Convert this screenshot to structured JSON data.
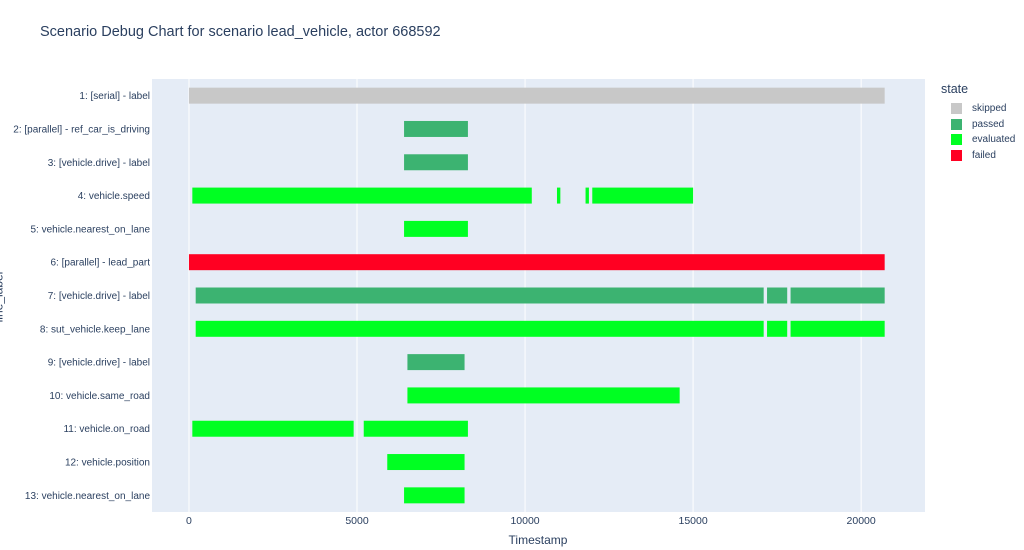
{
  "chart_data": {
    "type": "gantt",
    "title": "Scenario Debug Chart for scenario lead_vehicle, actor 668592",
    "xlabel": "Timestamp",
    "ylabel": "line_label",
    "xlim": [
      -1100,
      21900
    ],
    "xticks": [
      0,
      5000,
      10000,
      15000,
      20000
    ],
    "grid": true,
    "legend": {
      "title": "state",
      "placement": "right",
      "items": [
        {
          "label": "skipped",
          "color": "#c8c8c8"
        },
        {
          "label": "passed",
          "color": "#3cb371"
        },
        {
          "label": "evaluated",
          "color": "#00ff22"
        },
        {
          "label": "failed",
          "color": "#ff0022"
        }
      ]
    },
    "rows": [
      {
        "label": "1: [serial] - label",
        "segments": [
          {
            "start": 0,
            "end": 20700,
            "state": "skipped"
          }
        ]
      },
      {
        "label": "2: [parallel] - ref_car_is_driving",
        "segments": [
          {
            "start": 6400,
            "end": 8300,
            "state": "passed"
          }
        ]
      },
      {
        "label": "3: [vehicle.drive] - label",
        "segments": [
          {
            "start": 6400,
            "end": 8300,
            "state": "passed"
          }
        ]
      },
      {
        "label": "4: vehicle.speed",
        "segments": [
          {
            "start": 100,
            "end": 10200,
            "state": "evaluated"
          },
          {
            "start": 10950,
            "end": 11050,
            "state": "evaluated"
          },
          {
            "start": 11800,
            "end": 11900,
            "state": "evaluated"
          },
          {
            "start": 12000,
            "end": 15000,
            "state": "evaluated"
          }
        ]
      },
      {
        "label": "5: vehicle.nearest_on_lane",
        "segments": [
          {
            "start": 6400,
            "end": 8300,
            "state": "evaluated"
          }
        ]
      },
      {
        "label": "6: [parallel] - lead_part",
        "segments": [
          {
            "start": 0,
            "end": 20700,
            "state": "failed"
          }
        ]
      },
      {
        "label": "7: [vehicle.drive] - label",
        "segments": [
          {
            "start": 200,
            "end": 17100,
            "state": "passed"
          },
          {
            "start": 17200,
            "end": 17800,
            "state": "passed"
          },
          {
            "start": 17900,
            "end": 20700,
            "state": "passed"
          }
        ]
      },
      {
        "label": "8: sut_vehicle.keep_lane",
        "segments": [
          {
            "start": 200,
            "end": 17100,
            "state": "evaluated"
          },
          {
            "start": 17200,
            "end": 17800,
            "state": "evaluated"
          },
          {
            "start": 17900,
            "end": 20700,
            "state": "evaluated"
          }
        ]
      },
      {
        "label": "9: [vehicle.drive] - label",
        "segments": [
          {
            "start": 6500,
            "end": 8200,
            "state": "passed"
          }
        ]
      },
      {
        "label": "10: vehicle.same_road",
        "segments": [
          {
            "start": 6500,
            "end": 14600,
            "state": "evaluated"
          }
        ]
      },
      {
        "label": "11: vehicle.on_road",
        "segments": [
          {
            "start": 100,
            "end": 4900,
            "state": "evaluated"
          },
          {
            "start": 5200,
            "end": 8300,
            "state": "evaluated"
          }
        ]
      },
      {
        "label": "12: vehicle.position",
        "segments": [
          {
            "start": 5900,
            "end": 8200,
            "state": "evaluated"
          }
        ]
      },
      {
        "label": "13: vehicle.nearest_on_lane",
        "segments": [
          {
            "start": 6400,
            "end": 8200,
            "state": "evaluated"
          }
        ]
      }
    ]
  }
}
